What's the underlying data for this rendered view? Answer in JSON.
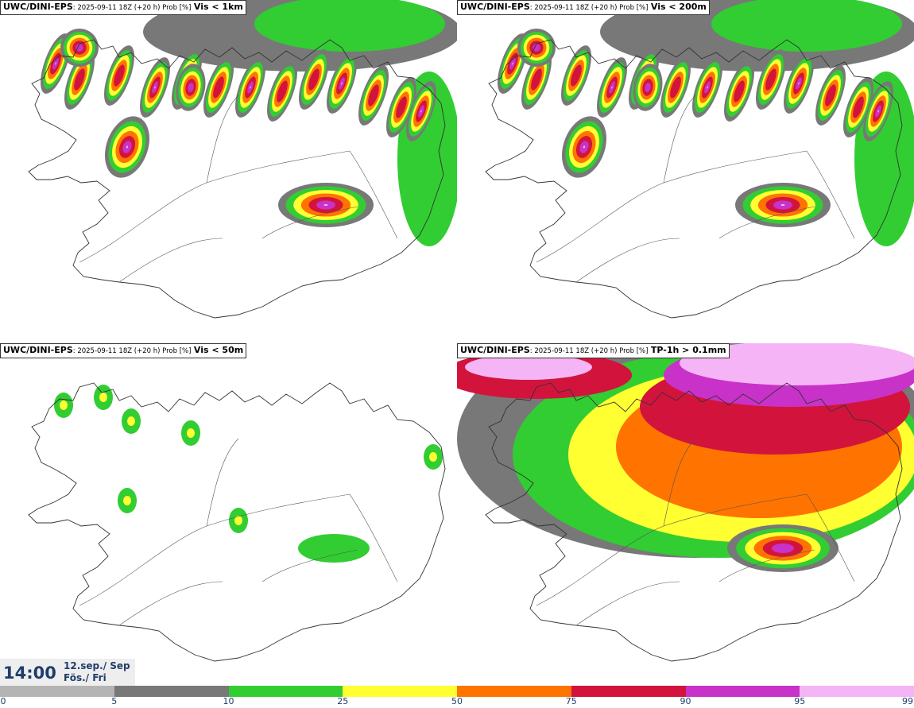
{
  "panels": [
    {
      "source": "UWC/DINI-EPS",
      "meta": ": 2025-09-11 18Z (+20 h) Prob [%]",
      "variable": "Vis < 1km"
    },
    {
      "source": "UWC/DINI-EPS",
      "meta": ": 2025-09-11 18Z (+20 h) Prob [%]",
      "variable": "Vis < 200m"
    },
    {
      "source": "UWC/DINI-EPS",
      "meta": ": 2025-09-11 18Z (+20 h) Prob [%]",
      "variable": "Vis < 50m"
    },
    {
      "source": "UWC/DINI-EPS",
      "meta": ": 2025-09-11 18Z (+20 h) Prob [%]",
      "variable": "TP-1h > 0.1mm"
    }
  ],
  "valid_time": {
    "time": "14:00",
    "date_line": "12.sep./ Sep",
    "day_line": "Fös./ Fri"
  },
  "colorbar": {
    "ticks": [
      "0",
      "5",
      "10",
      "25",
      "50",
      "75",
      "90",
      "95",
      "99"
    ],
    "colors": [
      "#ffffff",
      "#b4b4b4",
      "#787878",
      "#32cd32",
      "#ffff32",
      "#ff7300",
      "#d2143c",
      "#c832c8",
      "#f5b4f5"
    ]
  }
}
